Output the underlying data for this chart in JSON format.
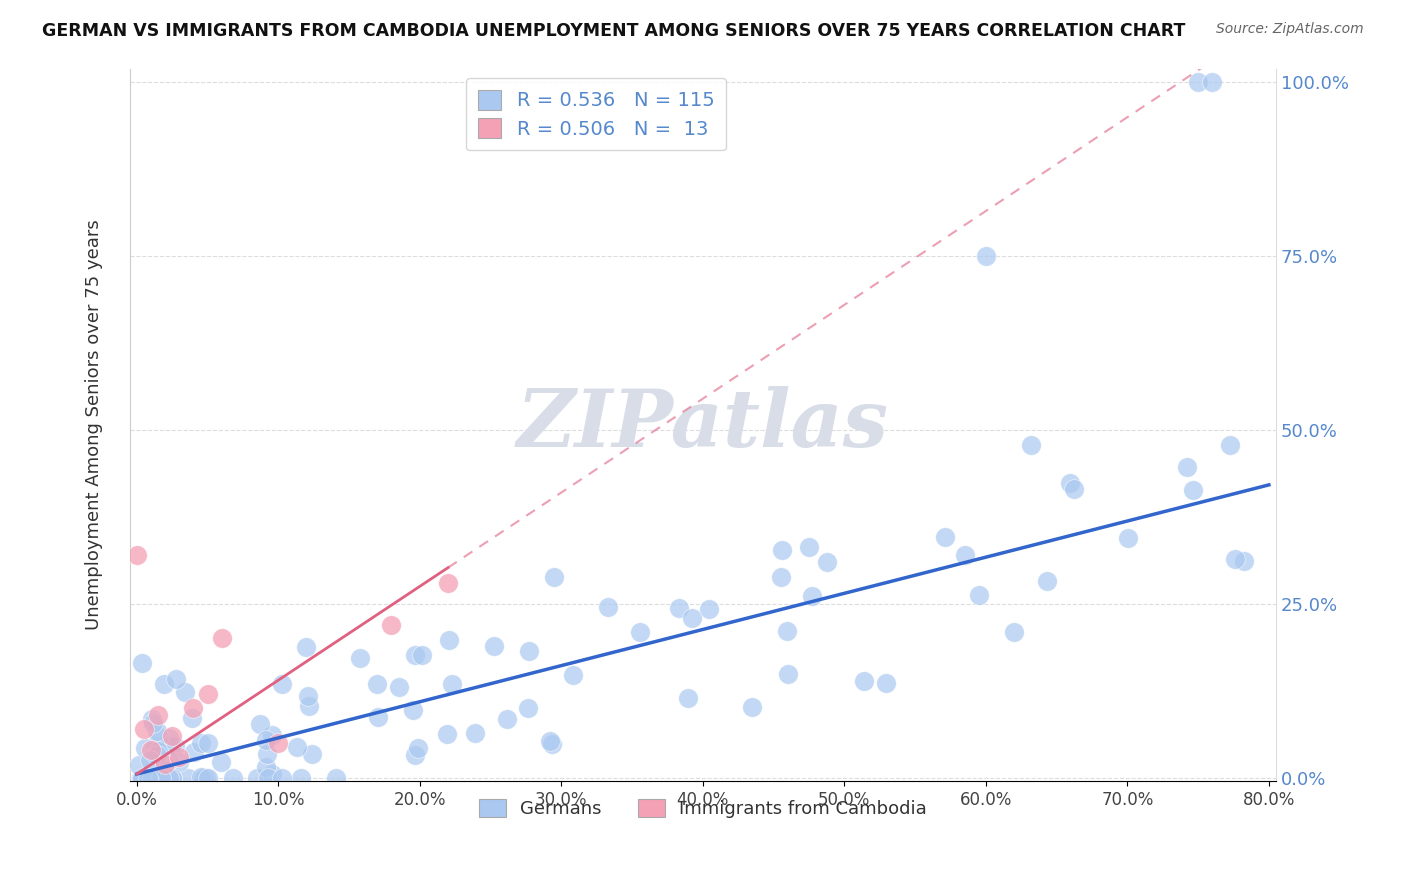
{
  "title": "GERMAN VS IMMIGRANTS FROM CAMBODIA UNEMPLOYMENT AMONG SENIORS OVER 75 YEARS CORRELATION CHART",
  "source": "Source: ZipAtlas.com",
  "ylabel": "Unemployment Among Seniors over 75 years",
  "xlim": [
    -0.005,
    0.805
  ],
  "ylim": [
    -0.005,
    1.02
  ],
  "xticks": [
    0.0,
    0.1,
    0.2,
    0.3,
    0.4,
    0.5,
    0.6,
    0.7,
    0.8
  ],
  "yticks": [
    0.0,
    0.25,
    0.5,
    0.75,
    1.0
  ],
  "xticklabels": [
    "0.0%",
    "10.0%",
    "20.0%",
    "30.0%",
    "40.0%",
    "50.0%",
    "60.0%",
    "70.0%",
    "80.0%"
  ],
  "yticklabels": [
    "0.0%",
    "25.0%",
    "50.0%",
    "75.0%",
    "100.0%"
  ],
  "german_R": 0.536,
  "german_N": 115,
  "cambodia_R": 0.506,
  "cambodia_N": 13,
  "german_color": "#aac8f0",
  "cambodia_color": "#f4a0b5",
  "german_line_color": "#3366cc",
  "cambodia_line_color": "#e06080",
  "watermark_color": "#d8dde8",
  "background_color": "#ffffff",
  "grid_color": "#dddddd",
  "tick_color": "#5588cc",
  "german_line_slope": 0.52,
  "german_line_intercept": 0.005,
  "cambodia_line_slope": 1.35,
  "cambodia_line_intercept": 0.005
}
